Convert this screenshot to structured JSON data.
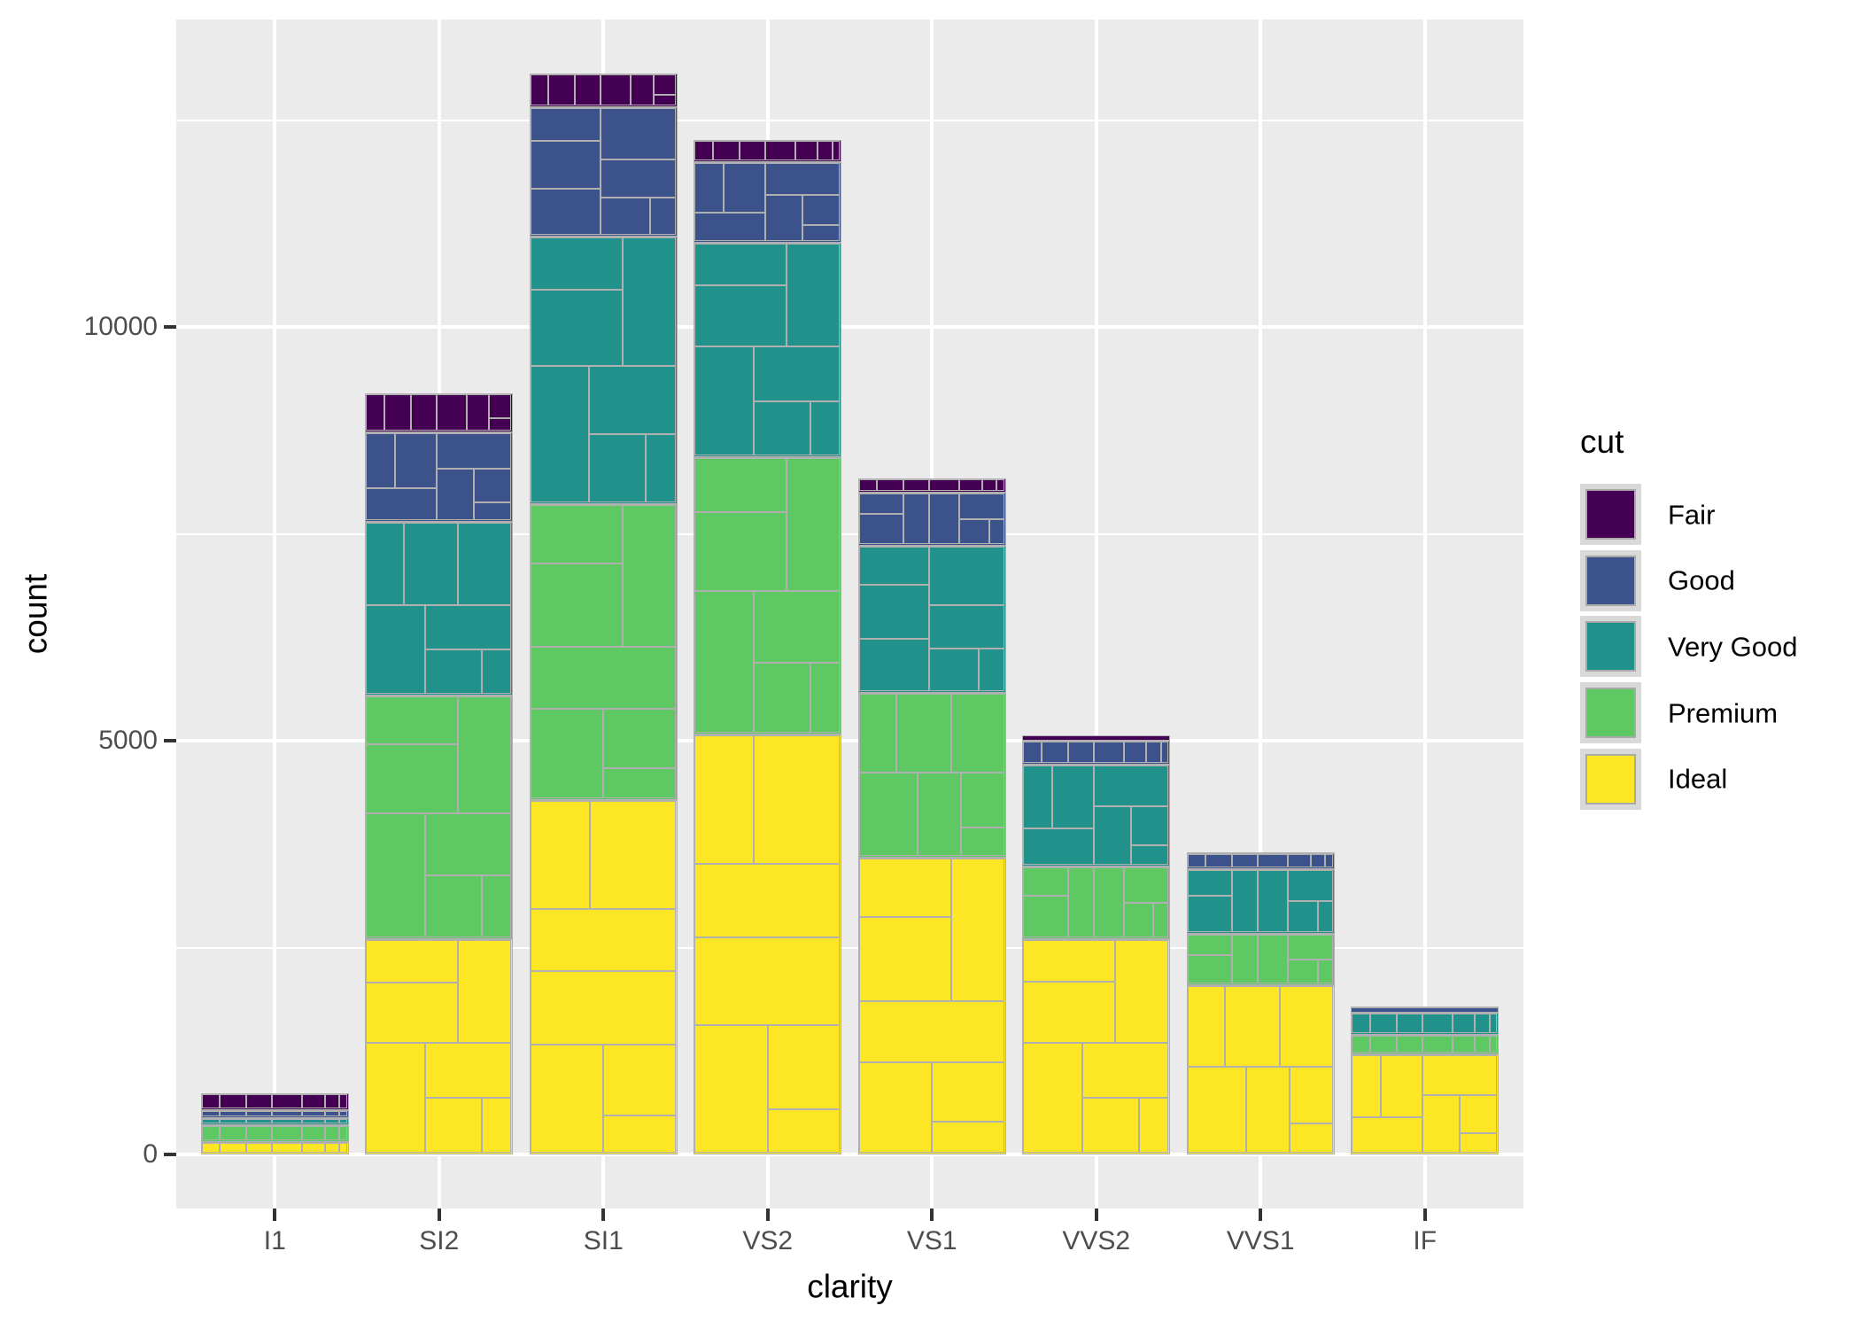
{
  "chart_data": {
    "type": "bar",
    "stacked": true,
    "title": "",
    "xlabel": "clarity",
    "ylabel": "count",
    "categories": [
      "I1",
      "SI2",
      "SI1",
      "VS2",
      "VS1",
      "VVS2",
      "VVS1",
      "IF"
    ],
    "series": [
      {
        "name": "Ideal",
        "color": "#fde725",
        "values": [
          146,
          2598,
          4282,
          5071,
          3589,
          2606,
          2047,
          1212
        ]
      },
      {
        "name": "Premium",
        "color": "#5ec962",
        "values": [
          205,
          2949,
          3575,
          3357,
          1989,
          870,
          616,
          230
        ]
      },
      {
        "name": "Very Good",
        "color": "#21918c",
        "values": [
          84,
          2100,
          3240,
          2591,
          1775,
          1235,
          789,
          268
        ]
      },
      {
        "name": "Good",
        "color": "#3b528b",
        "values": [
          96,
          1081,
          1560,
          978,
          648,
          286,
          186,
          71
        ]
      },
      {
        "name": "Fair",
        "color": "#440154",
        "values": [
          210,
          466,
          408,
          261,
          170,
          69,
          17,
          9
        ]
      }
    ],
    "totals": [
      741,
      9194,
      13065,
      12258,
      8171,
      5066,
      3655,
      1790
    ],
    "y_axis": {
      "tick_values": [
        0,
        5000,
        10000
      ],
      "tick_labels": [
        "0",
        "5000",
        "10000"
      ],
      "minor_tick_values": [
        2500,
        7500,
        12500
      ],
      "limits": [
        -653,
        13718
      ]
    },
    "legend": {
      "title": "cut",
      "position": "right",
      "entries": [
        "Fair",
        "Good",
        "Very Good",
        "Premium",
        "Ideal"
      ]
    },
    "subgroup_fractions": [
      0.1256,
      0.1816,
      0.1769,
      0.2093,
      0.154,
      0.1005,
      0.0521
    ],
    "style": {
      "panel_bg": "#ebebeb",
      "grid_color": "#ffffff",
      "cell_border": "#b0b0b0",
      "tick_color": "#333333",
      "tick_label_color": "#4d4d4d",
      "axis_title_color": "#000000",
      "legend_key_bg": "#d9d9d9",
      "legend_swatch_border": "#a9a9a9",
      "background": "#ffffff"
    }
  }
}
